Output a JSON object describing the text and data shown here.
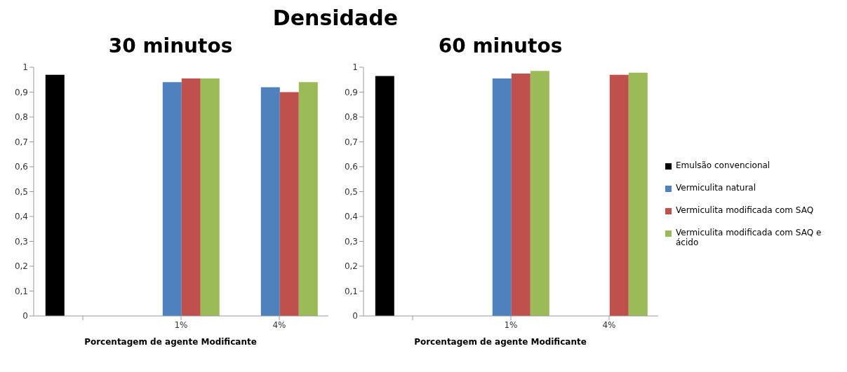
{
  "chart_data": [
    {
      "type": "bar",
      "title": "30 minutos",
      "annotations": [
        "Densidade"
      ],
      "xlabel": "Porcentagem de agente Modificante",
      "categories": [
        null,
        "1%",
        "4%"
      ],
      "ylim": [
        0,
        1
      ],
      "yticks": [
        {
          "value": 0,
          "label": "0"
        },
        {
          "value": 0.1,
          "label": "0,1"
        },
        {
          "value": 0.2,
          "label": "0,2"
        },
        {
          "value": 0.3,
          "label": "0,3"
        },
        {
          "value": 0.4,
          "label": "0,4"
        },
        {
          "value": 0.5,
          "label": "0,5"
        },
        {
          "value": 0.6,
          "label": "0,6"
        },
        {
          "value": 0.7,
          "label": "0,7"
        },
        {
          "value": 0.8,
          "label": "0,8"
        },
        {
          "value": 0.9,
          "label": "0,9"
        },
        {
          "value": 1,
          "label": "1"
        }
      ],
      "legend": "right",
      "series": [
        {
          "color": "#000000",
          "values": [
            0.97,
            null,
            null
          ]
        },
        {
          "color": "#4f81bd",
          "values": [
            null,
            0.94,
            0.92
          ]
        },
        {
          "color": "#c0504d",
          "values": [
            null,
            0.955,
            0.9
          ]
        },
        {
          "color": "#9bbb59",
          "values": [
            null,
            0.955,
            0.94
          ]
        }
      ]
    },
    {
      "type": "bar",
      "title": "60 minutos",
      "xlabel": "Porcentagem de agente Modificante",
      "categories": [
        null,
        "1%",
        "4%"
      ],
      "ylim": [
        0,
        1
      ],
      "yticks": [
        {
          "value": 0,
          "label": "0"
        },
        {
          "value": 0.1,
          "label": "0,1"
        },
        {
          "value": 0.2,
          "label": "0,2"
        },
        {
          "value": 0.3,
          "label": "0,3"
        },
        {
          "value": 0.4,
          "label": "0,4"
        },
        {
          "value": 0.5,
          "label": "0,5"
        },
        {
          "value": 0.6,
          "label": "0,6"
        },
        {
          "value": 0.7,
          "label": "0,7"
        },
        {
          "value": 0.8,
          "label": "0,8"
        },
        {
          "value": 0.9,
          "label": "0,9"
        },
        {
          "value": 1,
          "label": "1"
        }
      ],
      "legend": "right",
      "series": [
        {
          "name": "Emulsão convencional",
          "color": "#000000",
          "values": [
            0.965,
            null,
            null
          ]
        },
        {
          "name": "Vermiculita natural",
          "color": "#4f81bd",
          "values": [
            null,
            0.955,
            null
          ]
        },
        {
          "name": "Vermiculita modificada com SAQ",
          "color": "#c0504d",
          "values": [
            null,
            0.975,
            0.97
          ]
        },
        {
          "name": "Vermiculita modificada com SAQ e ácido",
          "color": "#9bbb59",
          "values": [
            null,
            0.985,
            0.978
          ]
        }
      ]
    }
  ]
}
